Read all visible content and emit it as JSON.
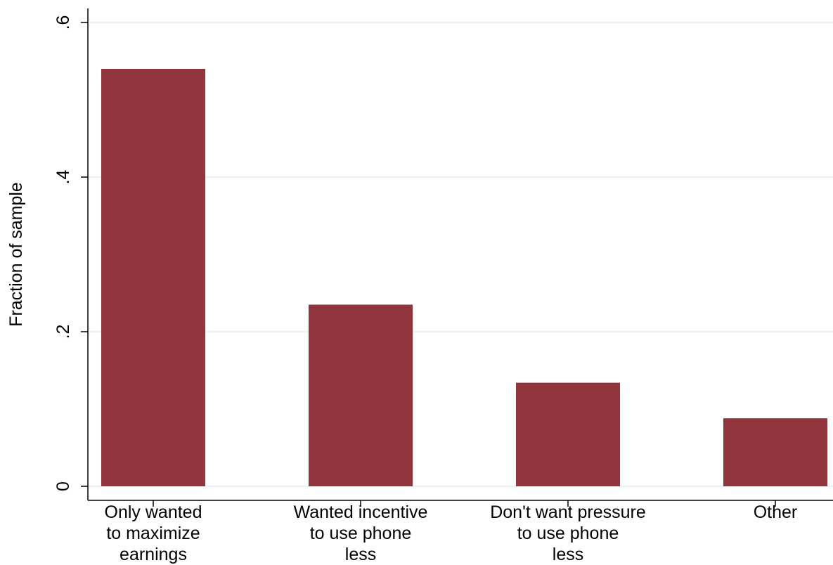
{
  "chart_data": {
    "type": "bar",
    "title": "",
    "xlabel": "",
    "ylabel": "Fraction of sample",
    "categories": [
      [
        "Only wanted",
        "to maximize",
        "earnings"
      ],
      [
        "Wanted incentive",
        "to use phone",
        "less"
      ],
      [
        "Don't want pressure",
        "to use phone",
        "less"
      ],
      [
        "Other"
      ]
    ],
    "values": [
      0.54,
      0.235,
      0.134,
      0.088
    ],
    "ylim": [
      0,
      0.6
    ],
    "yticks": [
      0,
      0.2,
      0.4,
      0.6
    ],
    "ytick_labels": [
      "0",
      ".2",
      ".4",
      ".6"
    ],
    "grid": true,
    "colors": {
      "bar": "#90353b",
      "grid": "#eaf2f3",
      "axis": "#000000"
    }
  }
}
